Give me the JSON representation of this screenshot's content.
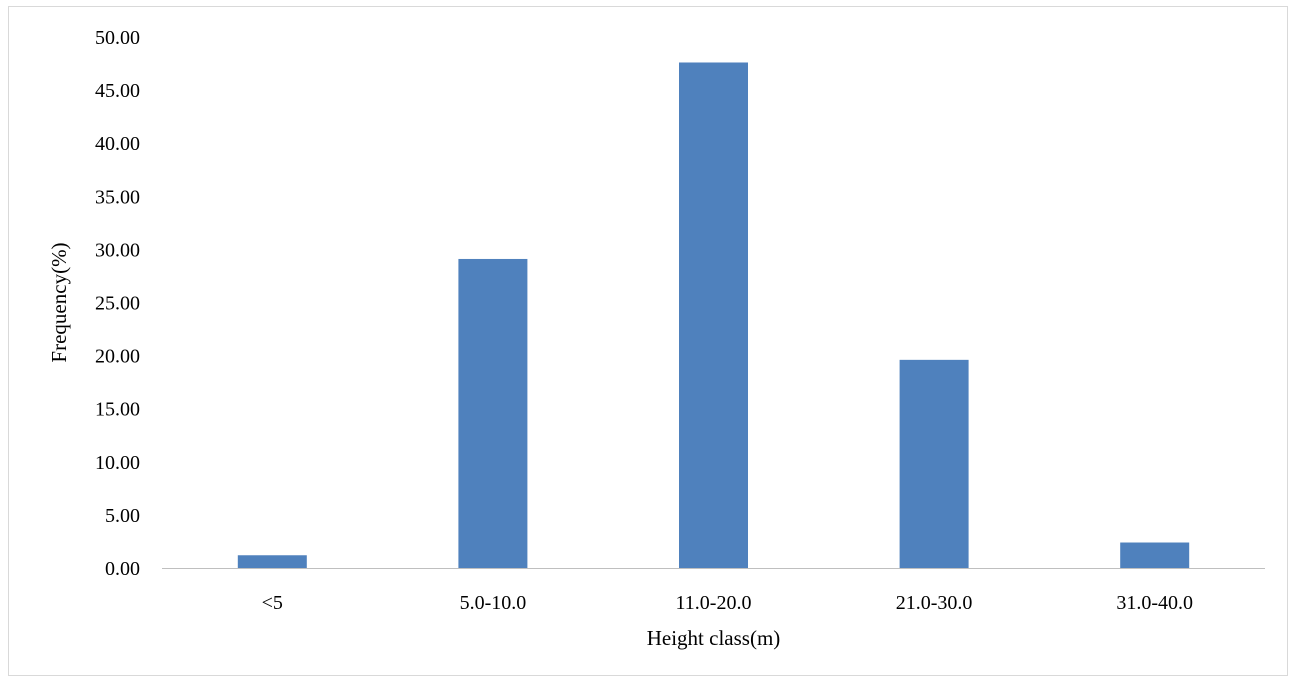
{
  "chart_data": {
    "type": "bar",
    "categories": [
      "<5",
      "5.0-10.0",
      "11.0-20.0",
      "21.0-30.0",
      "31.0-40.0"
    ],
    "values": [
      1.2,
      29.1,
      47.6,
      19.6,
      2.4
    ],
    "title": "",
    "xlabel": "Height class(m)",
    "ylabel": "Frequency(%)",
    "ylim": [
      0,
      50
    ],
    "yticks": [
      "0.00",
      "5.00",
      "10.00",
      "15.00",
      "20.00",
      "25.00",
      "30.00",
      "35.00",
      "40.00",
      "45.00",
      "50.00"
    ],
    "grid": false,
    "legend": "none",
    "bar_color": "#4f81bd",
    "axis_color": "#bfbfbf"
  }
}
